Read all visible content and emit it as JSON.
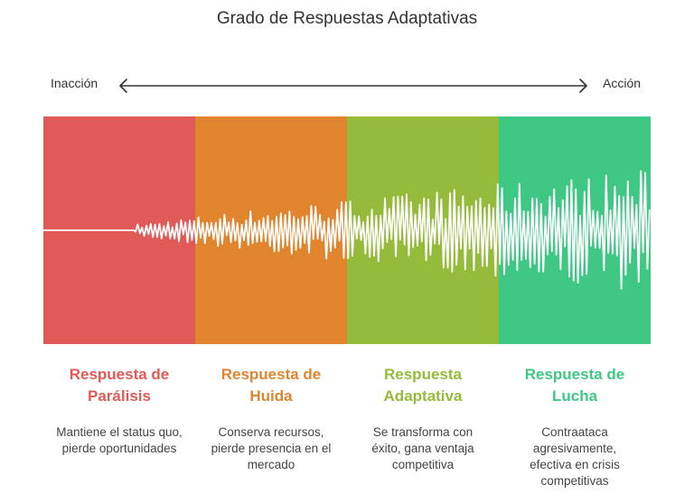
{
  "title": "Grado de Respuestas Adaptativas",
  "axis": {
    "left_label": "Inacción",
    "right_label": "Acción"
  },
  "stages": [
    {
      "title": "Respuesta de Parálisis",
      "description": "Mantiene el status quo, pierde oportunidades",
      "color": "#E05A57"
    },
    {
      "title": "Respuesta de Huida",
      "description": "Conserva recursos, pierde presencia en el mercado",
      "color": "#E0852E"
    },
    {
      "title": "Respuesta Adaptativa",
      "description": "Se transforma con éxito, gana ventaja competitiva",
      "color": "#94BB3A"
    },
    {
      "title": "Respuesta de Lucha",
      "description": "Contraataca agresivamente, efectiva en crisis competitivas",
      "color": "#3FC784"
    }
  ]
}
